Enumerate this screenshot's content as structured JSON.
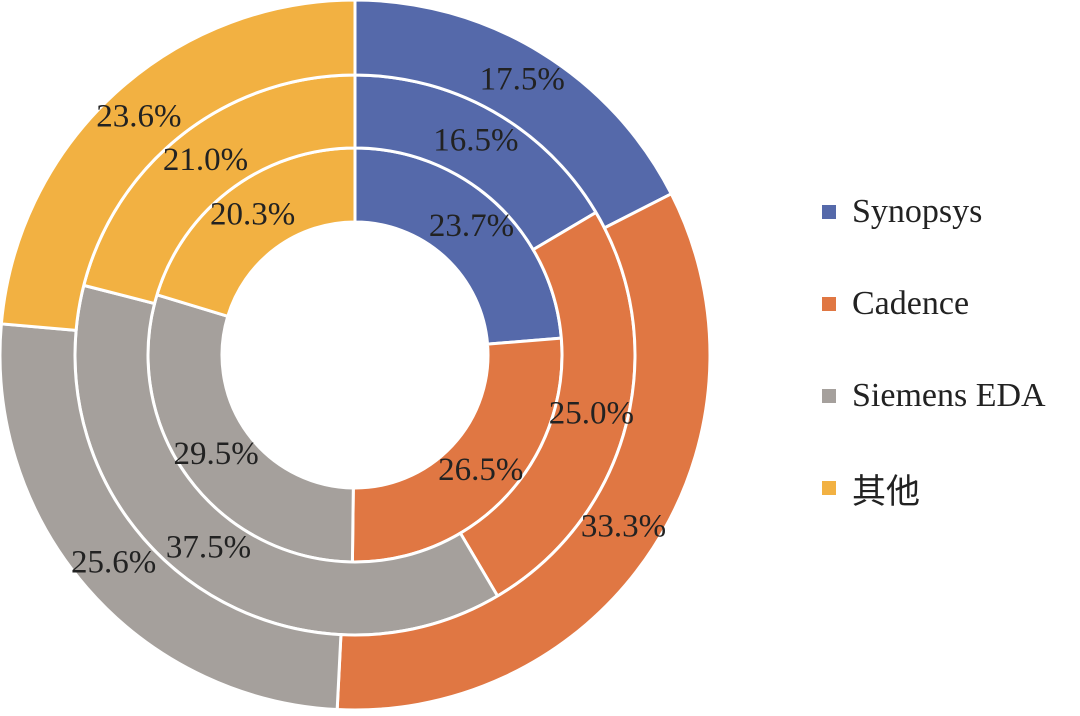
{
  "chart_data": {
    "type": "pie",
    "variant": "concentric-donut",
    "start_angle_deg": 0,
    "direction": "clockwise",
    "categories": [
      "Synopsys",
      "Cadence",
      "Siemens EDA",
      "其他"
    ],
    "colors": [
      "#5569AA",
      "#E07743",
      "#A5A09C",
      "#F2B142"
    ],
    "series": [
      {
        "ring": "inner",
        "values": [
          23.7,
          26.5,
          29.5,
          20.3
        ],
        "labels": [
          "23.7%",
          "26.5%",
          "29.5%",
          "20.3%"
        ]
      },
      {
        "ring": "middle",
        "values": [
          16.5,
          25.0,
          37.5,
          21.0
        ],
        "labels": [
          "16.5%",
          "25.0%",
          "37.5%",
          "21.0%"
        ]
      },
      {
        "ring": "outer",
        "values": [
          17.5,
          33.3,
          25.6,
          23.6
        ],
        "labels": [
          "17.5%",
          "33.3%",
          "25.6%",
          "23.6%"
        ]
      }
    ],
    "legend": {
      "placement": "right",
      "items": [
        "Synopsys",
        "Cadence",
        "Siemens EDA",
        "其他"
      ]
    },
    "title": "",
    "xlabel": "",
    "ylabel": ""
  }
}
